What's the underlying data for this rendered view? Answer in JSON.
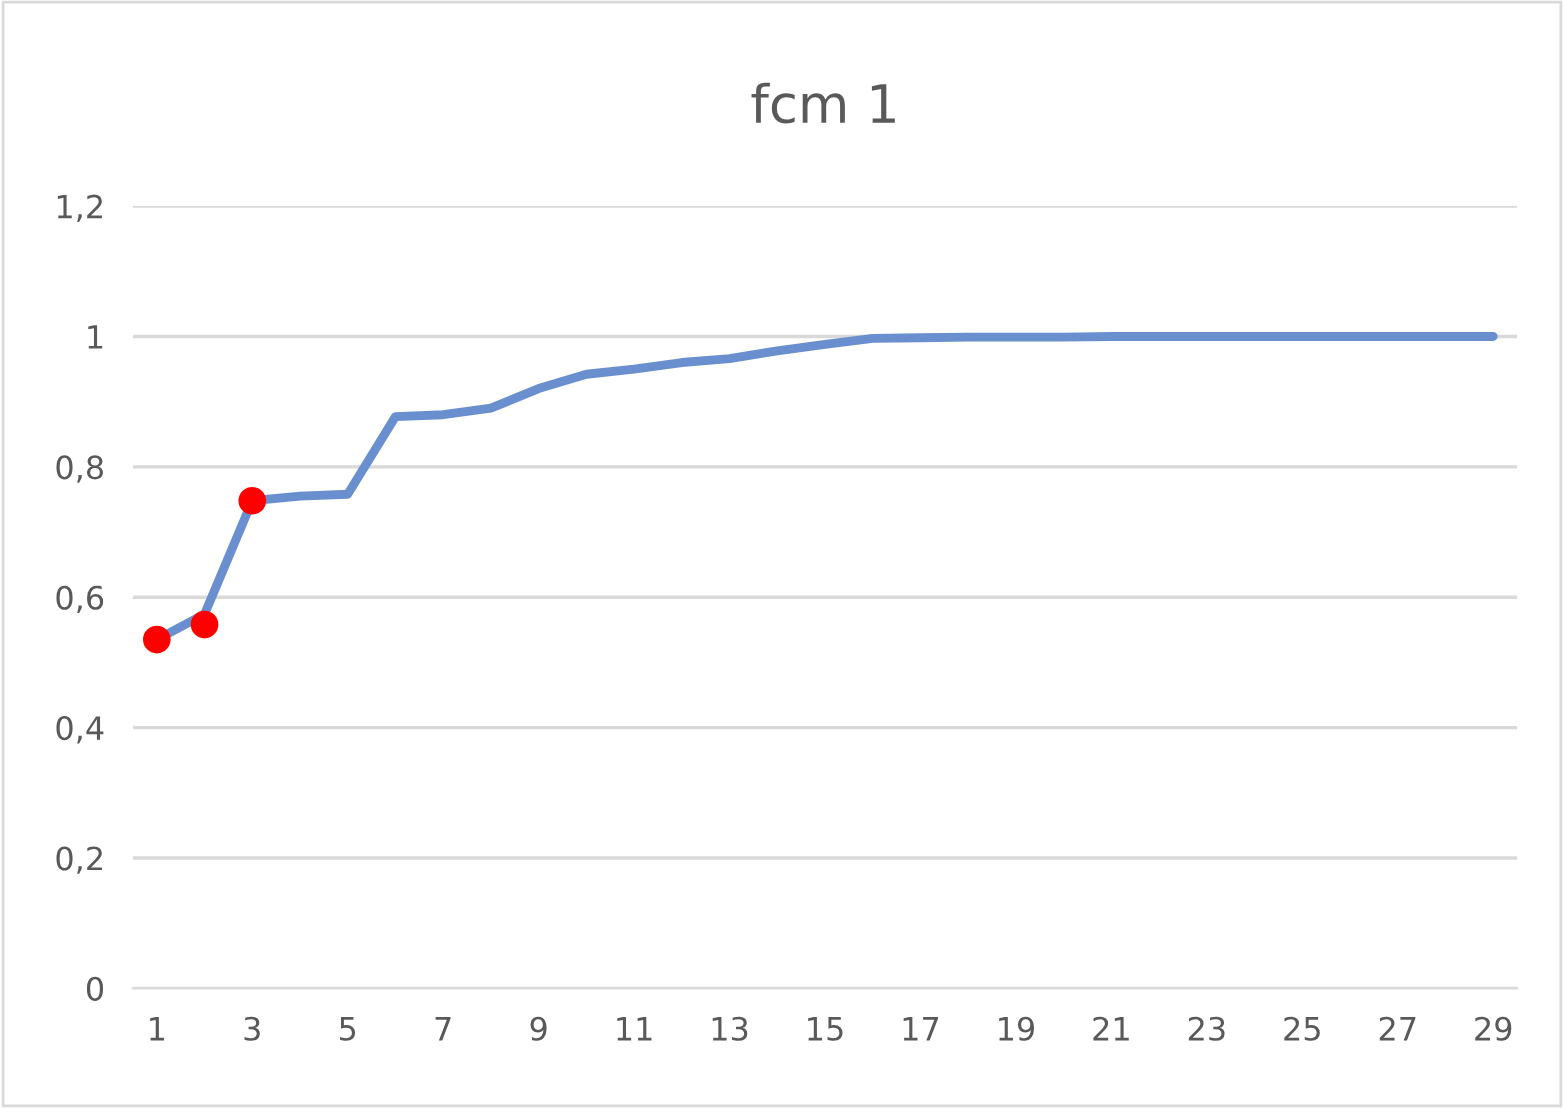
{
  "chart_data": {
    "type": "line",
    "title": "fcm 1",
    "categories": [
      "1",
      null,
      "3",
      null,
      "5",
      null,
      "7",
      null,
      "9",
      null,
      "11",
      null,
      "13",
      null,
      "15",
      null,
      "17",
      null,
      "19",
      null,
      "21",
      null,
      "23",
      null,
      "25",
      null,
      "27",
      null,
      "29"
    ],
    "series": [
      {
        "color": "#6a8fcf",
        "marker": "none",
        "values": [
          0.535,
          0.574,
          0.748,
          0.755,
          0.758,
          0.877,
          0.88,
          0.89,
          0.92,
          0.942,
          0.95,
          0.96,
          0.966,
          0.978,
          0.988,
          0.997,
          0.998,
          0.999,
          0.999,
          0.999,
          1.0,
          1.0,
          1.0,
          1.0,
          1.0,
          1.0,
          1.0,
          1.0,
          1.0
        ]
      },
      {
        "type": "scatter",
        "color": "#ff0000",
        "marker": "circle",
        "x": [
          "1",
          null,
          "3"
        ],
        "values": [
          0.535,
          0.558,
          0.748
        ]
      }
    ],
    "ylim": [
      0,
      1.2
    ],
    "yticks": [
      0,
      {
        "value": 0.2,
        "label": "0,2"
      },
      {
        "value": 0.4,
        "label": "0,4"
      },
      {
        "value": 0.6,
        "label": "0,6"
      },
      {
        "value": 0.8,
        "label": "0,8"
      },
      1,
      {
        "value": 1.2,
        "label": "1,2"
      }
    ],
    "grid": "y",
    "line_style": "solid"
  }
}
